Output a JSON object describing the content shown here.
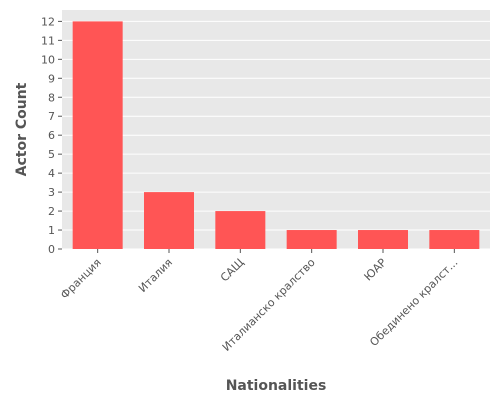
{
  "chart_data": {
    "type": "bar",
    "categories": [
      "Франция",
      "Италия",
      "САЩ",
      "Италианско кралство",
      "ЮАР",
      "Обединено кралст..."
    ],
    "values": [
      12,
      3,
      2,
      1,
      1,
      1
    ],
    "xlabel": "Nationalities",
    "ylabel": "Actor Count",
    "ylim": [
      0,
      12.6
    ],
    "yticks": [
      0,
      1,
      2,
      3,
      4,
      5,
      6,
      7,
      8,
      9,
      10,
      11,
      12
    ],
    "grid": true,
    "bar_color": "#ff5555",
    "background_color": "#e8e8e8",
    "grid_color": "#ffffff",
    "text_color": "#555555"
  }
}
